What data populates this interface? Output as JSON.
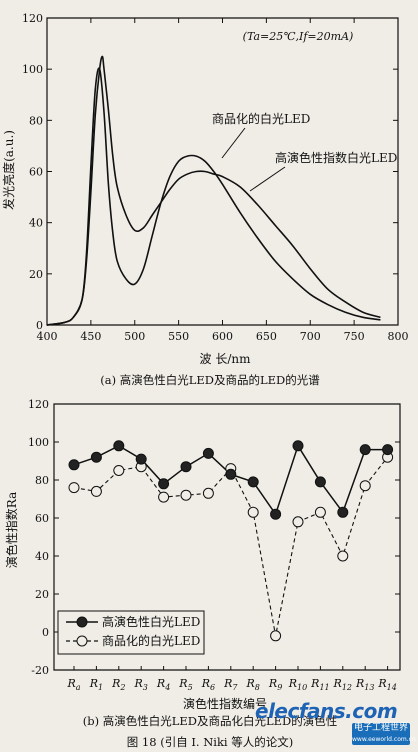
{
  "figure_caption": "图  18   (引自 I. Niki 等人的论文)",
  "chart_data": [
    {
      "type": "line",
      "condition": "(Ta=25℃,If=20mA)",
      "xlabel": "波 长/nm",
      "ylabel": "发光亮度(a.u.)",
      "xlim": [
        400,
        800
      ],
      "ylim": [
        0,
        120
      ],
      "xticks": [
        400,
        450,
        500,
        550,
        600,
        650,
        700,
        750,
        800
      ],
      "yticks": [
        0,
        20,
        40,
        60,
        80,
        100,
        120
      ],
      "caption": "(a) 高演色性白光LED及商品的LED的光谱",
      "series": [
        {
          "name": "商品化的白光LED",
          "x": [
            400,
            420,
            430,
            440,
            445,
            450,
            455,
            460,
            465,
            470,
            475,
            480,
            490,
            500,
            510,
            520,
            530,
            540,
            550,
            560,
            570,
            580,
            590,
            600,
            620,
            640,
            660,
            680,
            700,
            720,
            740,
            760,
            780
          ],
          "y": [
            0,
            1,
            3,
            10,
            28,
            62,
            92,
            100,
            83,
            55,
            36,
            25,
            18,
            16,
            22,
            35,
            48,
            58,
            64,
            66,
            66,
            64,
            60,
            55,
            44,
            34,
            25,
            18,
            12,
            8,
            5,
            3,
            2
          ]
        },
        {
          "name": "高演色性指数白光LED",
          "x": [
            400,
            420,
            430,
            440,
            445,
            450,
            455,
            460,
            463,
            465,
            470,
            475,
            480,
            490,
            500,
            510,
            520,
            530,
            540,
            550,
            560,
            570,
            580,
            590,
            600,
            620,
            640,
            660,
            680,
            700,
            720,
            740,
            760,
            780
          ],
          "y": [
            0,
            1,
            3,
            10,
            25,
            52,
            82,
            100,
            105,
            100,
            84,
            66,
            54,
            43,
            37,
            38,
            43,
            48,
            53,
            57,
            59,
            60,
            60,
            59,
            58,
            54,
            47,
            39,
            31,
            22,
            14,
            9,
            5,
            3
          ]
        }
      ]
    },
    {
      "type": "line",
      "ylabel": "演色性指数Ra",
      "xlabel": "演色性指数编号",
      "ylim": [
        -20,
        120
      ],
      "yticks": [
        -20,
        0,
        20,
        40,
        60,
        80,
        100,
        120
      ],
      "categories": [
        "Ra",
        "R1",
        "R2",
        "R3",
        "R4",
        "R5",
        "R6",
        "R7",
        "R8",
        "R9",
        "R10",
        "R11",
        "R12",
        "R13",
        "R14"
      ],
      "caption": "(b) 高演色性白光LED及商品化白光LED的演色性",
      "legend_position": "bottom-left",
      "series": [
        {
          "name": "高演色性白光LED",
          "marker": "filled-circle",
          "line": "solid",
          "values": [
            88,
            92,
            98,
            91,
            78,
            87,
            94,
            83,
            79,
            62,
            98,
            79,
            63,
            96,
            96
          ]
        },
        {
          "name": "商品化的白光LED",
          "marker": "open-circle",
          "line": "dashed",
          "values": [
            76,
            74,
            85,
            87,
            71,
            72,
            73,
            86,
            63,
            -2,
            58,
            63,
            40,
            77,
            92
          ]
        }
      ]
    }
  ],
  "watermark": {
    "logo_text": "elecfans.com",
    "site_text": "电子工程世界",
    "site_url": "www.eeworld.com.cn"
  }
}
